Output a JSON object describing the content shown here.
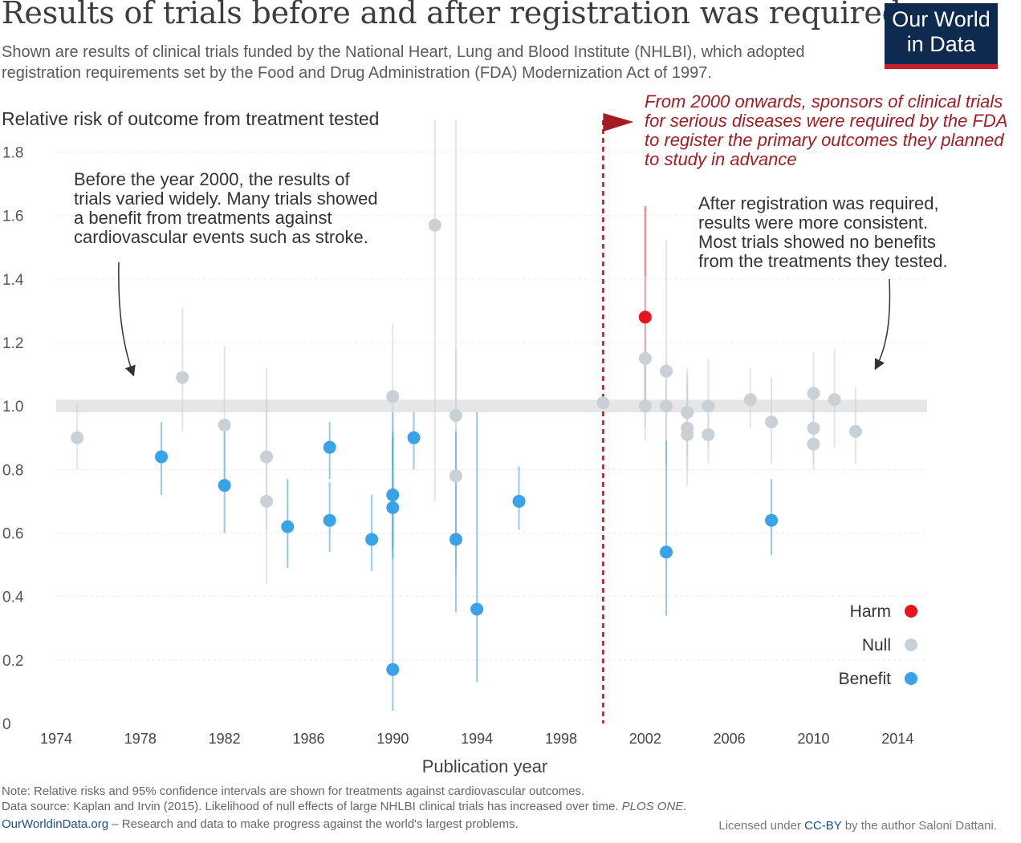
{
  "header": {
    "title": "Results of trials before and after registration was required",
    "subtitle": "Shown are results of clinical trials funded by the National Heart, Lung and Blood Institute (NHLBI), which adopted registration requirements set by the Food and Drug Administration (FDA) Modernization Act of 1997.",
    "logo_line1": "Our World",
    "logo_line2": "in Data"
  },
  "colors": {
    "harm": "#e8141c",
    "null": "#c9d0d6",
    "benefit": "#3aa2e8",
    "annotation_red": "#a41c22",
    "logo_bg": "#0f2a4f"
  },
  "chart_data": {
    "type": "scatter",
    "title": "Results of trials before and after registration was required",
    "ylabel": "Relative risk of outcome from treatment tested",
    "xlabel": "Publication year",
    "xlim": [
      1974,
      2015.4
    ],
    "ylim": [
      0,
      1.9
    ],
    "x_ticks": [
      "1974",
      "1978",
      "1982",
      "1986",
      "1990",
      "1994",
      "1998",
      "2002",
      "2006",
      "2010",
      "2014"
    ],
    "y_ticks": [
      "0",
      "0.2",
      "0.4",
      "0.6",
      "0.8",
      "1.0",
      "1.2",
      "1.4",
      "1.6",
      "1.8"
    ],
    "reference_band": {
      "from": 0.98,
      "to": 1.02
    },
    "registration_line_year": 2000,
    "legend": {
      "position": "bottom-right",
      "items": [
        "Harm",
        "Null",
        "Benefit"
      ]
    },
    "points": [
      {
        "year": 1975,
        "rr": 0.9,
        "lo": 0.8,
        "hi": 1.01,
        "cat": "Null"
      },
      {
        "year": 1979,
        "rr": 0.84,
        "lo": 0.72,
        "hi": 0.95,
        "cat": "Benefit"
      },
      {
        "year": 1980,
        "rr": 1.09,
        "lo": 0.92,
        "hi": 1.31,
        "cat": "Null"
      },
      {
        "year": 1982,
        "rr": 0.94,
        "lo": 0.74,
        "hi": 1.19,
        "cat": "Null"
      },
      {
        "year": 1982,
        "rr": 0.75,
        "lo": 0.6,
        "hi": 0.92,
        "cat": "Benefit"
      },
      {
        "year": 1984,
        "rr": 0.84,
        "lo": 0.61,
        "hi": 1.12,
        "cat": "Null"
      },
      {
        "year": 1984,
        "rr": 0.7,
        "lo": 0.44,
        "hi": 1.02,
        "cat": "Null"
      },
      {
        "year": 1985,
        "rr": 0.62,
        "lo": 0.49,
        "hi": 0.77,
        "cat": "Benefit"
      },
      {
        "year": 1987,
        "rr": 0.87,
        "lo": 0.77,
        "hi": 0.95,
        "cat": "Benefit"
      },
      {
        "year": 1987,
        "rr": 0.64,
        "lo": 0.54,
        "hi": 0.76,
        "cat": "Benefit"
      },
      {
        "year": 1989,
        "rr": 0.58,
        "lo": 0.48,
        "hi": 0.72,
        "cat": "Benefit"
      },
      {
        "year": 1990,
        "rr": 1.03,
        "lo": 0.8,
        "hi": 1.26,
        "cat": "Null"
      },
      {
        "year": 1990,
        "rr": 0.72,
        "lo": 0.55,
        "hi": 0.92,
        "cat": "Benefit"
      },
      {
        "year": 1990,
        "rr": 0.68,
        "lo": 0.52,
        "hi": 0.9,
        "cat": "Benefit"
      },
      {
        "year": 1990,
        "rr": 0.17,
        "lo": 0.04,
        "hi": 0.98,
        "cat": "Benefit"
      },
      {
        "year": 1991,
        "rr": 0.9,
        "lo": 0.8,
        "hi": 0.98,
        "cat": "Benefit"
      },
      {
        "year": 1992,
        "rr": 1.57,
        "lo": 0.7,
        "hi": 1.9,
        "cat": "Null"
      },
      {
        "year": 1993,
        "rr": 0.97,
        "lo": 0.5,
        "hi": 1.9,
        "cat": "Null"
      },
      {
        "year": 1993,
        "rr": 0.78,
        "lo": 0.47,
        "hi": 1.18,
        "cat": "Null"
      },
      {
        "year": 1993,
        "rr": 0.58,
        "lo": 0.35,
        "hi": 0.92,
        "cat": "Benefit"
      },
      {
        "year": 1994,
        "rr": 0.36,
        "lo": 0.13,
        "hi": 0.98,
        "cat": "Benefit"
      },
      {
        "year": 1996,
        "rr": 0.7,
        "lo": 0.61,
        "hi": 0.81,
        "cat": "Benefit"
      },
      {
        "year": 2000,
        "rr": 1.01,
        "lo": 1.0,
        "hi": 1.02,
        "cat": "Null"
      },
      {
        "year": 2002,
        "rr": 1.28,
        "lo": 0.98,
        "hi": 1.63,
        "cat": "Harm"
      },
      {
        "year": 2002,
        "rr": 1.15,
        "lo": 0.93,
        "hi": 1.41,
        "cat": "Null"
      },
      {
        "year": 2002,
        "rr": 1.0,
        "lo": 0.89,
        "hi": 1.13,
        "cat": "Null"
      },
      {
        "year": 2003,
        "rr": 1.11,
        "lo": 0.82,
        "hi": 1.52,
        "cat": "Null"
      },
      {
        "year": 2003,
        "rr": 1.0,
        "lo": 0.88,
        "hi": 1.14,
        "cat": "Null"
      },
      {
        "year": 2003,
        "rr": 0.54,
        "lo": 0.34,
        "hi": 0.89,
        "cat": "Benefit"
      },
      {
        "year": 2004,
        "rr": 0.98,
        "lo": 0.84,
        "hi": 1.12,
        "cat": "Null"
      },
      {
        "year": 2004,
        "rr": 0.93,
        "lo": 0.8,
        "hi": 1.08,
        "cat": "Null"
      },
      {
        "year": 2004,
        "rr": 0.91,
        "lo": 0.75,
        "hi": 1.1,
        "cat": "Null"
      },
      {
        "year": 2005,
        "rr": 1.0,
        "lo": 0.87,
        "hi": 1.15,
        "cat": "Null"
      },
      {
        "year": 2005,
        "rr": 0.91,
        "lo": 0.82,
        "hi": 1.02,
        "cat": "Null"
      },
      {
        "year": 2007,
        "rr": 1.02,
        "lo": 0.93,
        "hi": 1.12,
        "cat": "Null"
      },
      {
        "year": 2008,
        "rr": 0.95,
        "lo": 0.82,
        "hi": 1.09,
        "cat": "Null"
      },
      {
        "year": 2008,
        "rr": 0.64,
        "lo": 0.53,
        "hi": 0.77,
        "cat": "Benefit"
      },
      {
        "year": 2010,
        "rr": 1.04,
        "lo": 0.93,
        "hi": 1.17,
        "cat": "Null"
      },
      {
        "year": 2010,
        "rr": 0.93,
        "lo": 0.82,
        "hi": 1.06,
        "cat": "Null"
      },
      {
        "year": 2010,
        "rr": 0.88,
        "lo": 0.8,
        "hi": 0.98,
        "cat": "Null"
      },
      {
        "year": 2011,
        "rr": 1.02,
        "lo": 0.87,
        "hi": 1.18,
        "cat": "Null"
      },
      {
        "year": 2012,
        "rr": 0.92,
        "lo": 0.82,
        "hi": 1.06,
        "cat": "Null"
      }
    ],
    "annotations": {
      "before": [
        "Before the year 2000, the results of",
        "trials varied widely. Many trials showed",
        "a benefit from treatments against",
        "cardiovascular events such as stroke."
      ],
      "after": [
        "After registration was required,",
        "results were more consistent.",
        "Most trials showed no benefits",
        "from the treatments they tested."
      ],
      "registration": [
        "From 2000 onwards, sponsors of clinical trials",
        "for serious diseases were required by the FDA",
        "to register the primary outcomes they planned",
        "to study in advance"
      ]
    }
  },
  "footer": {
    "note": "Note: Relative risks and 95% confidence intervals are shown for treatments against cardiovascular outcomes.",
    "source": "Data source: Kaplan and Irvin (2015). Likelihood of null effects of large NHLBI clinical trials has increased over time.",
    "source_journal": "PLOS ONE.",
    "site": "OurWorldinData.org",
    "tagline": " – Research and data to make progress against the world's largest problems.",
    "license_pre": "Licensed under ",
    "license_link": "CC-BY",
    "license_post": " by the author Saloni Dattani."
  }
}
